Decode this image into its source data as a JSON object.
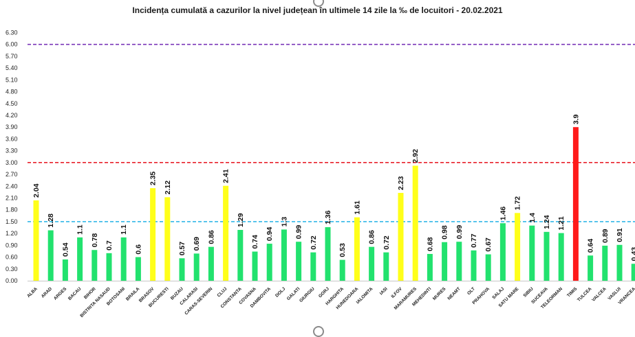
{
  "chart_data": {
    "type": "bar",
    "title": "Incidența cumulată a cazurilor la nivel județean în ultimele 14 zile la ‰ de locuitori - 20.02.2021",
    "xlabel": "",
    "ylabel": "",
    "ylim": [
      0,
      6.3
    ],
    "yticks": [
      "0.00",
      "0.30",
      "0.60",
      "0.90",
      "1.20",
      "1.50",
      "1.80",
      "2.10",
      "2.40",
      "2.70",
      "3.00",
      "3.30",
      "3.60",
      "3.90",
      "4.20",
      "4.50",
      "4.80",
      "5.10",
      "5.40",
      "5.70",
      "6.00",
      "6.30"
    ],
    "grid": false,
    "categories": [
      "ALBA",
      "ARAD",
      "ARGES",
      "BACAU",
      "BIHOR",
      "BISTRITA NASAUD",
      "BOTOSANI",
      "BRAILA",
      "BRASOV",
      "BUCURESTI",
      "BUZAU",
      "CALARASI",
      "CARAS-SEVERIN",
      "CLUJ",
      "CONSTANTA",
      "COVASNA",
      "DAMBOVITA",
      "DOLJ",
      "GALATI",
      "GIURGIU",
      "GORJ",
      "HARGHITA",
      "HUNEDOARA",
      "IALOMITA",
      "IASI",
      "ILFOV",
      "MARAMURES",
      "MEHEDINTI",
      "MURES",
      "NEAMT",
      "OLT",
      "PRAHOVA",
      "SALAJ",
      "SATU MARE",
      "SIBIU",
      "SUCEAVA",
      "TELEORMAN",
      "TIMIS",
      "TULCEA",
      "VALCEA",
      "VASLUI",
      "VRANCEA"
    ],
    "values": [
      2.04,
      1.28,
      0.54,
      1.1,
      0.78,
      0.7,
      1.1,
      0.6,
      2.35,
      2.12,
      0.57,
      0.69,
      0.86,
      2.41,
      1.29,
      0.74,
      0.94,
      1.3,
      0.99,
      0.72,
      1.36,
      0.53,
      1.61,
      0.86,
      0.72,
      2.23,
      2.92,
      0.68,
      0.98,
      0.99,
      0.77,
      0.67,
      1.46,
      1.72,
      1.4,
      1.24,
      1.21,
      3.9,
      0.64,
      0.89,
      0.91,
      0.43
    ],
    "value_labels": [
      "2.04",
      "1.28",
      "0.54",
      "1.1",
      "0.78",
      "0.7",
      "1.1",
      "0.6",
      "2.35",
      "2.12",
      "0.57",
      "0.69",
      "0.86",
      "2.41",
      "1.29",
      "0.74",
      "0.94",
      "1.3",
      "0.99",
      "0.72",
      "1.36",
      "0.53",
      "1.61",
      "0.86",
      "0.72",
      "2.23",
      "2.92",
      "0.68",
      "0.98",
      "0.99",
      "0.77",
      "0.67",
      "1.46",
      "1.72",
      "1.4",
      "1.24",
      "1.21",
      "3.9",
      "0.64",
      "0.89",
      "0.91",
      "0.43"
    ],
    "colors": {
      "green": "#22e26e",
      "yellow": "#ffff1a",
      "red": "#ff1a1a",
      "line_low": "#30b8e8",
      "line_mid": "#e8202a",
      "line_high": "#7a34b8"
    },
    "threshold_lines": [
      {
        "value": 1.5,
        "color": "#30b8e8",
        "style": "dashed"
      },
      {
        "value": 3.0,
        "color": "#e8202a",
        "style": "dashed"
      },
      {
        "value": 6.0,
        "color": "#7a34b8",
        "style": "dashed"
      }
    ]
  }
}
